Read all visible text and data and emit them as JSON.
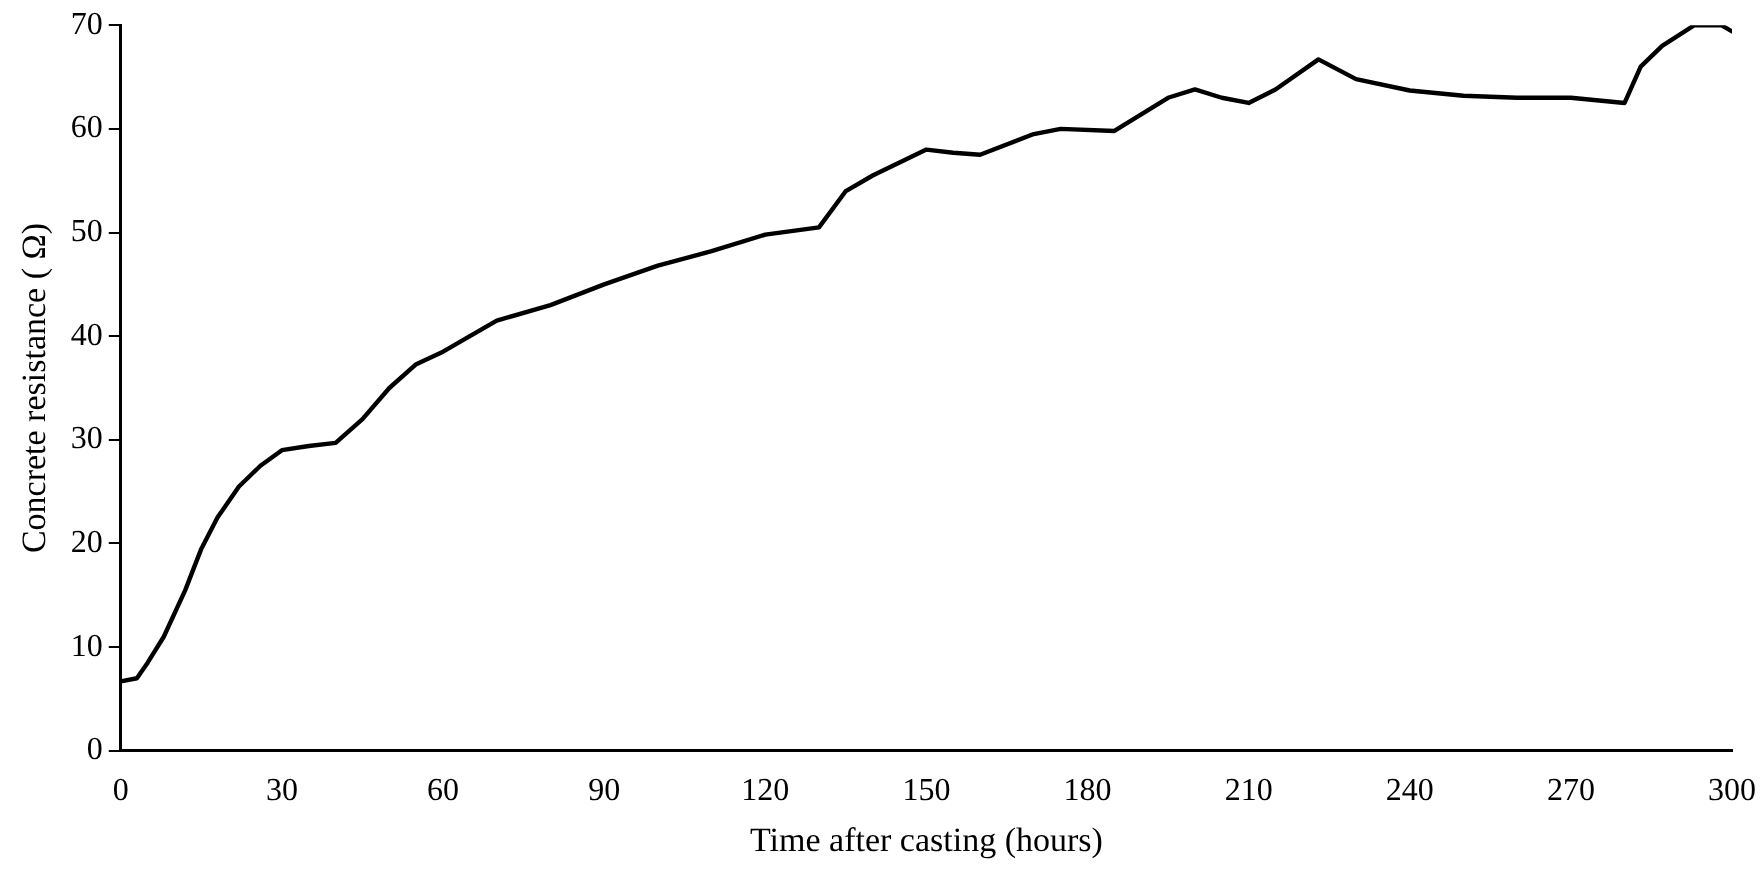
{
  "chart_data": {
    "type": "line",
    "xlabel": "Time after casting (hours)",
    "ylabel": "Concrete resistance ( Ω)",
    "xlim": [
      0,
      300
    ],
    "xticks": [
      0,
      30,
      60,
      90,
      120,
      150,
      180,
      210,
      240,
      270,
      300
    ],
    "ylim": [
      0,
      70
    ],
    "yticks": [
      0,
      10,
      20,
      30,
      40,
      50,
      60,
      70
    ],
    "grid": false,
    "legend": false,
    "marker": "none",
    "line_style": "solid",
    "series": [
      {
        "color": "#000000",
        "x": [
          0,
          3,
          5,
          8,
          12,
          15,
          18,
          22,
          26,
          30,
          35,
          40,
          45,
          50,
          55,
          60,
          65,
          70,
          80,
          90,
          100,
          110,
          120,
          130,
          135,
          140,
          150,
          155,
          160,
          170,
          175,
          185,
          195,
          200,
          205,
          210,
          215,
          223,
          230,
          240,
          250,
          260,
          270,
          280,
          283,
          287,
          293,
          298,
          300
        ],
        "values": [
          6.7,
          7,
          8.5,
          11,
          15.5,
          19.5,
          22.5,
          25.5,
          27.5,
          29,
          29.4,
          29.7,
          32,
          35,
          37.3,
          38.5,
          40,
          41.5,
          43,
          45,
          46.8,
          48.2,
          49.8,
          50.5,
          54,
          55.5,
          58,
          57.7,
          57.5,
          59.5,
          60,
          59.8,
          63,
          63.8,
          63,
          62.5,
          63.8,
          66.7,
          64.8,
          63.7,
          63.2,
          63,
          63,
          62.5,
          66,
          68,
          70,
          70,
          69.4
        ]
      }
    ]
  }
}
